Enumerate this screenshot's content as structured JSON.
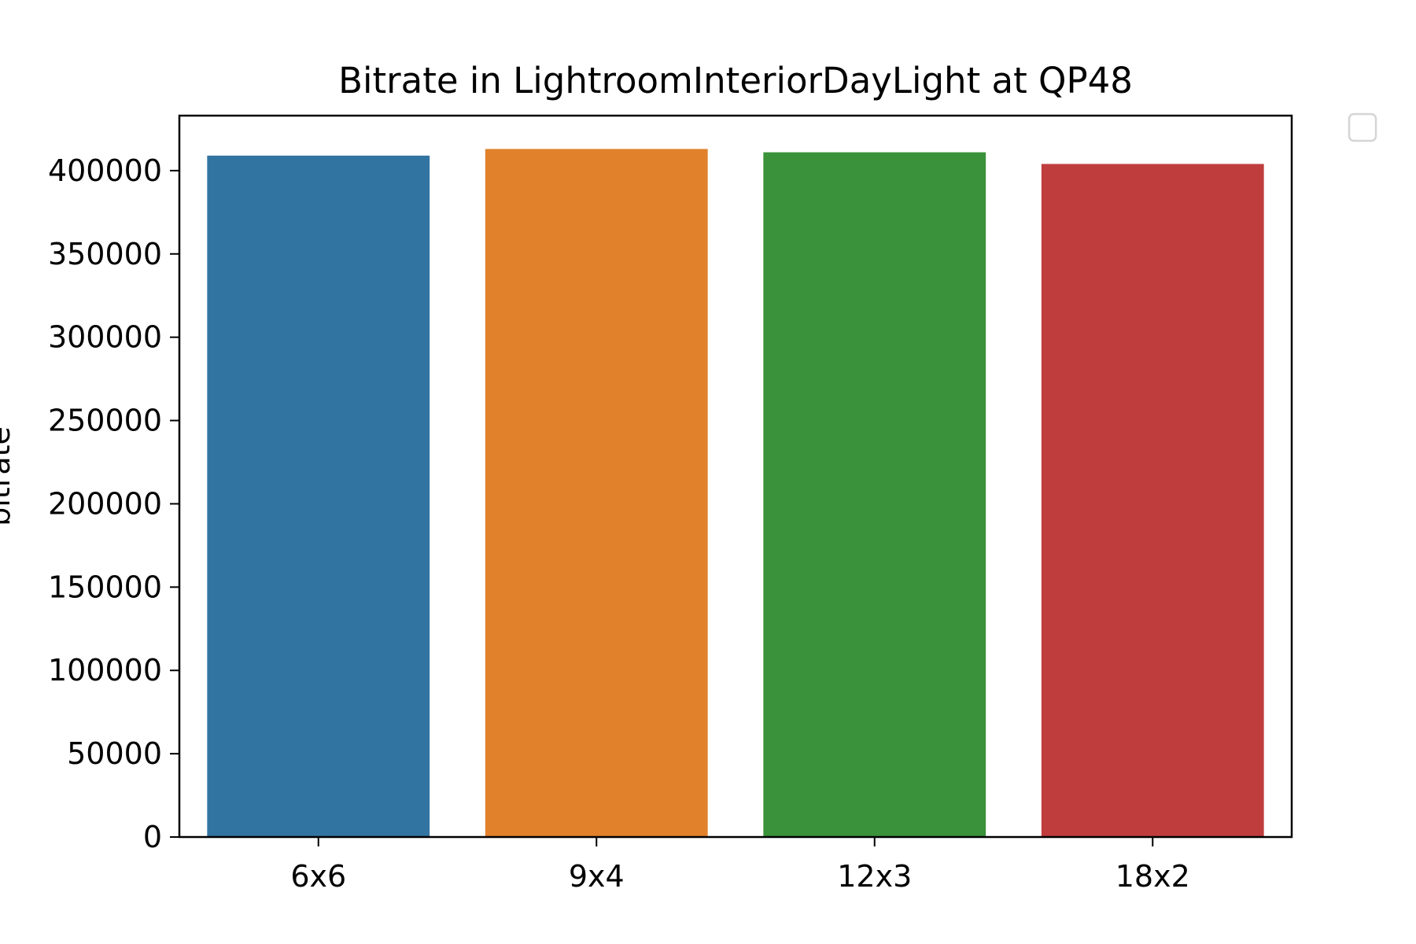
{
  "chart_data": {
    "type": "bar",
    "title": "Bitrate in LightroomInteriorDayLight at QP48",
    "xlabel": "",
    "ylabel": "bitrate",
    "categories": [
      "6x6",
      "9x4",
      "12x3",
      "18x2"
    ],
    "values": [
      409000,
      413000,
      411000,
      404000
    ],
    "colors": [
      "#3274a1",
      "#e1812c",
      "#3a923a",
      "#c03d3e"
    ],
    "ylim": [
      0,
      433000
    ],
    "yticks": [
      0,
      50000,
      100000,
      150000,
      200000,
      250000,
      300000,
      350000,
      400000
    ],
    "grid": false,
    "legend": {
      "placement": "upper-right-outside",
      "entries": []
    }
  }
}
